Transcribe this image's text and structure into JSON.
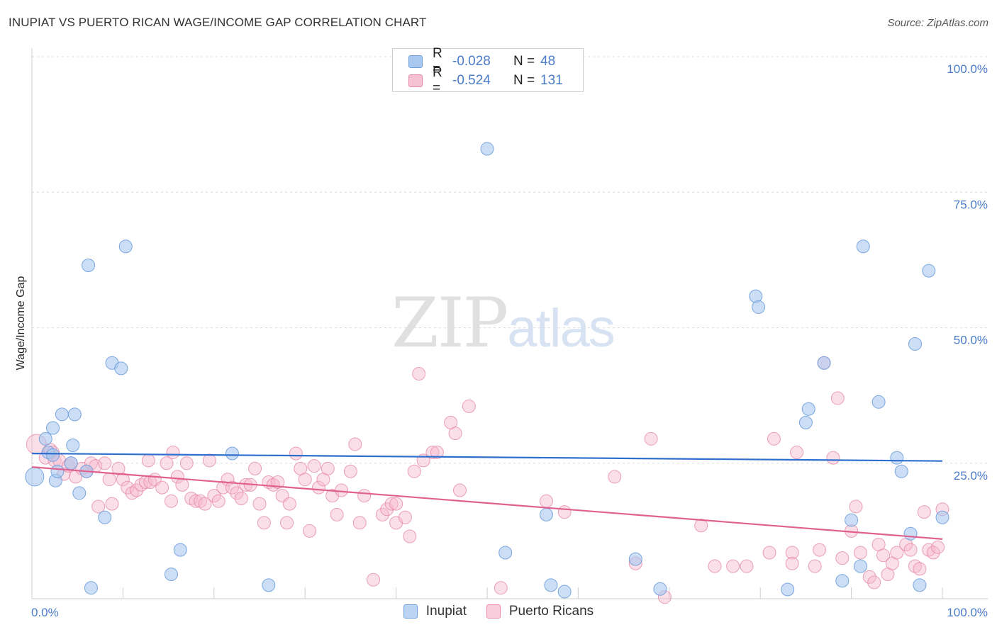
{
  "title": "INUPIAT VS PUERTO RICAN WAGE/INCOME GAP CORRELATION CHART",
  "source": "Source: ZipAtlas.com",
  "watermark": {
    "zip": "ZIP",
    "atlas": "atlas"
  },
  "legend": {
    "rows": [
      {
        "r_label": "R =",
        "r_value": "-0.028",
        "n_label": "N =",
        "n_value": "48"
      },
      {
        "r_label": "R =",
        "r_value": "-0.524",
        "n_label": "N =",
        "n_value": "131"
      }
    ]
  },
  "bottom_legend": [
    "Inupiat",
    "Puerto Ricans"
  ],
  "colors": {
    "inupiat_fill": "#a9c8ef",
    "inupiat_stroke": "#6e9fdc",
    "inupiat_line": "#2e6fce",
    "pr_fill": "#f6b8cc",
    "pr_stroke": "#e58aa9",
    "pr_line": "#e0608e",
    "tick": "#4a7cc9",
    "grid": "#dcdcdc"
  },
  "chart_data": {
    "type": "scatter",
    "title": "INUPIAT VS PUERTO RICAN WAGE/INCOME GAP CORRELATION CHART",
    "xlabel": "",
    "ylabel": "Wage/Income Gap",
    "xlim": [
      0,
      100
    ],
    "ylim": [
      0,
      100
    ],
    "x_tick_labels": [
      "0.0%",
      "100.0%"
    ],
    "y_ticks": [
      25,
      50,
      75,
      100
    ],
    "y_tick_labels": [
      "25.0%",
      "50.0%",
      "75.0%",
      "100.0%"
    ],
    "series": [
      {
        "name": "Inupiat",
        "r": -0.028,
        "n": 48,
        "trend": [
          [
            0,
            26.8
          ],
          [
            100,
            25.4
          ]
        ],
        "points": [
          [
            0.3,
            22.5
          ],
          [
            1.5,
            29.5
          ],
          [
            1.8,
            27
          ],
          [
            2.3,
            31.5
          ],
          [
            2.3,
            26.5
          ],
          [
            2.6,
            21.8
          ],
          [
            2.8,
            23.5
          ],
          [
            3.3,
            34
          ],
          [
            4.3,
            25
          ],
          [
            4.5,
            28.3
          ],
          [
            4.7,
            34
          ],
          [
            5.2,
            19.5
          ],
          [
            6.0,
            23.5
          ],
          [
            6.2,
            61.5
          ],
          [
            6.5,
            2
          ],
          [
            8,
            15
          ],
          [
            8.8,
            43.5
          ],
          [
            9.8,
            42.5
          ],
          [
            10.3,
            65
          ],
          [
            15.3,
            4.5
          ],
          [
            16.3,
            9
          ],
          [
            22,
            26.8
          ],
          [
            26,
            2.5
          ],
          [
            50,
            83
          ],
          [
            52,
            8.5
          ],
          [
            56.5,
            15.5
          ],
          [
            57,
            2.5
          ],
          [
            58.5,
            1.3
          ],
          [
            66.3,
            7.3
          ],
          [
            69,
            1.8
          ],
          [
            79.5,
            55.8
          ],
          [
            79.8,
            53.8
          ],
          [
            83,
            1.7
          ],
          [
            85,
            32.5
          ],
          [
            85.3,
            35
          ],
          [
            87,
            43.5
          ],
          [
            89,
            3.3
          ],
          [
            90,
            14.5
          ],
          [
            91,
            6
          ],
          [
            91.3,
            65
          ],
          [
            93,
            36.3
          ],
          [
            95,
            26
          ],
          [
            95.5,
            23.5
          ],
          [
            96.5,
            12
          ],
          [
            97,
            47
          ],
          [
            97.5,
            2.5
          ],
          [
            98.5,
            60.5
          ],
          [
            100,
            15
          ]
        ]
      },
      {
        "name": "Puerto Ricans",
        "r": -0.524,
        "n": 131,
        "trend": [
          [
            0,
            24.3
          ],
          [
            100,
            11
          ]
        ],
        "points": [
          [
            0.5,
            28.5
          ],
          [
            1.5,
            26
          ],
          [
            2,
            27.5
          ],
          [
            2.3,
            27
          ],
          [
            2.5,
            25.5
          ],
          [
            3,
            25.5
          ],
          [
            3.5,
            23
          ],
          [
            4,
            24.5
          ],
          [
            4.3,
            25
          ],
          [
            4.8,
            22.5
          ],
          [
            5.5,
            24
          ],
          [
            6,
            23.5
          ],
          [
            6.5,
            25
          ],
          [
            7,
            24.5
          ],
          [
            7.3,
            17
          ],
          [
            8,
            25
          ],
          [
            8.5,
            22
          ],
          [
            8.8,
            17.5
          ],
          [
            9.5,
            24
          ],
          [
            10,
            22
          ],
          [
            10.5,
            20.5
          ],
          [
            11,
            19.5
          ],
          [
            11.5,
            20
          ],
          [
            12,
            21
          ],
          [
            12.5,
            21.5
          ],
          [
            12.8,
            25.5
          ],
          [
            13,
            21.5
          ],
          [
            13.5,
            22
          ],
          [
            14.3,
            20.5
          ],
          [
            14.8,
            25
          ],
          [
            15.3,
            18
          ],
          [
            15.5,
            27
          ],
          [
            16,
            22.5
          ],
          [
            16.5,
            21
          ],
          [
            17,
            25
          ],
          [
            17.5,
            18.5
          ],
          [
            18,
            18
          ],
          [
            18.5,
            18
          ],
          [
            19,
            17.5
          ],
          [
            19.5,
            25.5
          ],
          [
            20,
            19
          ],
          [
            20.5,
            18
          ],
          [
            21,
            20.5
          ],
          [
            21.5,
            22
          ],
          [
            22,
            20.5
          ],
          [
            22.5,
            19.5
          ],
          [
            23,
            18.5
          ],
          [
            23.5,
            21
          ],
          [
            24,
            21
          ],
          [
            24.5,
            24
          ],
          [
            25,
            17.5
          ],
          [
            25.5,
            14
          ],
          [
            26,
            21.5
          ],
          [
            26.5,
            21
          ],
          [
            27,
            21.5
          ],
          [
            27.5,
            19
          ],
          [
            28,
            14
          ],
          [
            28.3,
            17.5
          ],
          [
            29,
            26.8
          ],
          [
            29.5,
            24
          ],
          [
            30,
            22
          ],
          [
            30.5,
            12.5
          ],
          [
            31,
            24.5
          ],
          [
            31.5,
            20.5
          ],
          [
            32,
            22
          ],
          [
            32.5,
            24
          ],
          [
            33,
            19
          ],
          [
            33.5,
            15.5
          ],
          [
            34,
            20
          ],
          [
            35,
            23.5
          ],
          [
            35.5,
            28.5
          ],
          [
            36,
            14
          ],
          [
            36.5,
            19
          ],
          [
            37.5,
            3.5
          ],
          [
            38.5,
            15.5
          ],
          [
            39,
            16.5
          ],
          [
            39.5,
            17.5
          ],
          [
            40,
            14
          ],
          [
            40,
            17.5
          ],
          [
            41,
            15
          ],
          [
            41.5,
            11.5
          ],
          [
            42,
            23.5
          ],
          [
            42.5,
            41.5
          ],
          [
            43,
            25.5
          ],
          [
            44,
            27
          ],
          [
            44.5,
            27
          ],
          [
            46,
            32.5
          ],
          [
            46.5,
            30.5
          ],
          [
            47,
            20
          ],
          [
            48,
            35.5
          ],
          [
            51.5,
            2
          ],
          [
            56.5,
            18
          ],
          [
            58.5,
            16
          ],
          [
            64,
            22.5
          ],
          [
            68,
            29.5
          ],
          [
            69.5,
            0.3
          ],
          [
            73.5,
            13.5
          ],
          [
            75,
            6
          ],
          [
            77,
            6
          ],
          [
            78.5,
            6
          ],
          [
            81,
            8.5
          ],
          [
            81.5,
            29.5
          ],
          [
            83.5,
            8.5
          ],
          [
            84,
            27
          ],
          [
            86,
            6
          ],
          [
            86.5,
            9
          ],
          [
            87,
            43.5
          ],
          [
            88,
            26
          ],
          [
            88.5,
            37
          ],
          [
            89,
            7.5
          ],
          [
            90,
            12.5
          ],
          [
            90.5,
            17
          ],
          [
            91,
            8.5
          ],
          [
            92,
            4
          ],
          [
            92.5,
            3
          ],
          [
            93,
            10
          ],
          [
            93.5,
            8
          ],
          [
            94,
            4.5
          ],
          [
            94.5,
            6.5
          ],
          [
            95,
            8.5
          ],
          [
            96,
            10
          ],
          [
            96.5,
            9
          ],
          [
            97,
            6
          ],
          [
            97.5,
            5.5
          ],
          [
            98,
            16
          ],
          [
            98.5,
            9
          ],
          [
            99,
            8.5
          ],
          [
            99.5,
            9.5
          ],
          [
            100,
            16.5
          ],
          [
            66.3,
            6.5
          ],
          [
            83.5,
            6.5
          ]
        ]
      }
    ]
  }
}
